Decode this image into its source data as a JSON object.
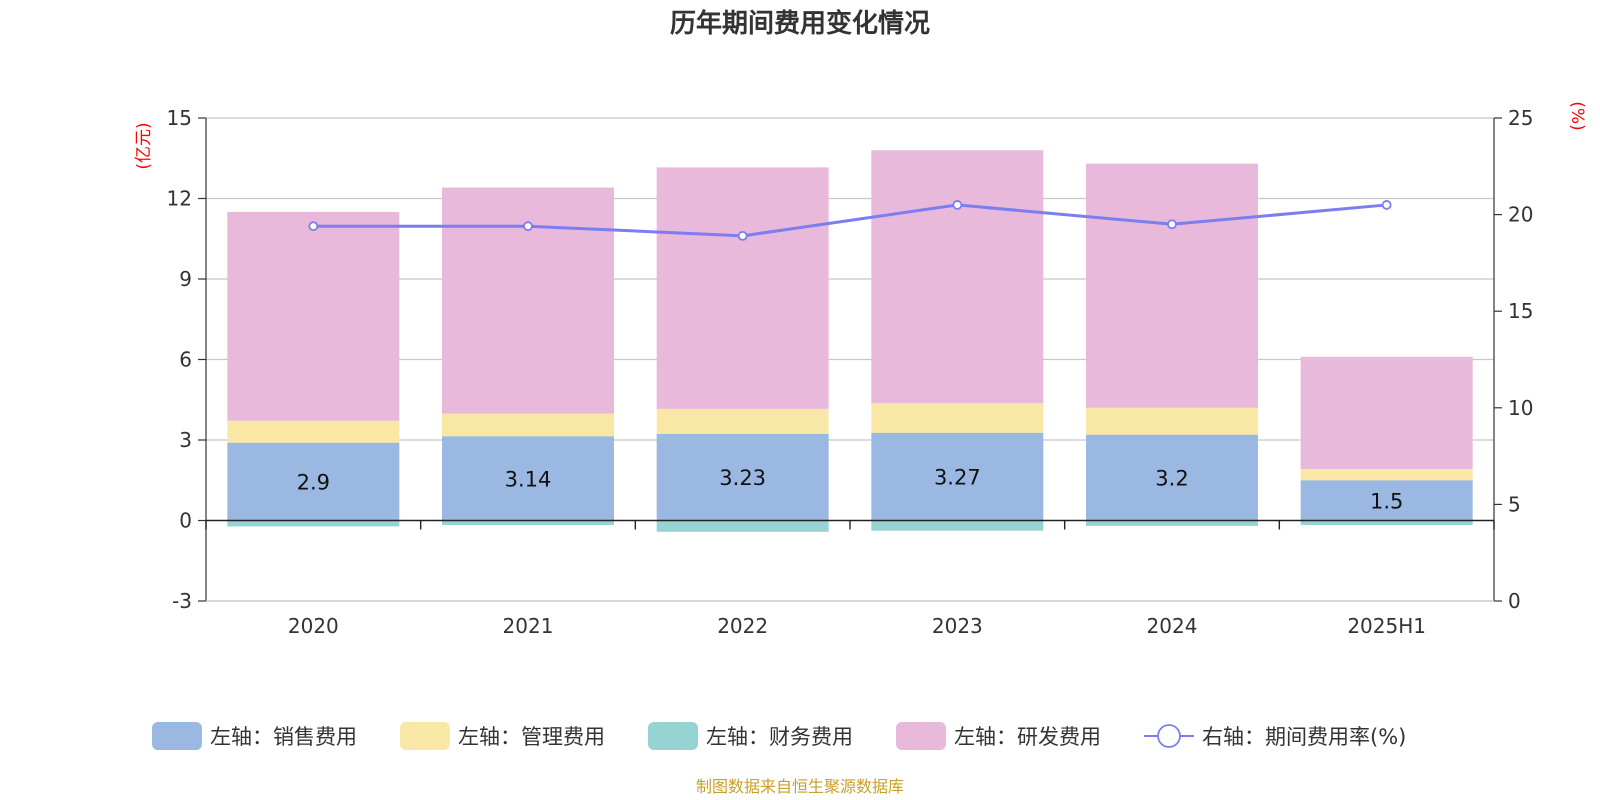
{
  "chart_data": {
    "type": "bar",
    "title": "历年期间费用变化情况",
    "categories": [
      "2020",
      "2021",
      "2022",
      "2023",
      "2024",
      "2025H1"
    ],
    "left_axis": {
      "unit": "(亿元)",
      "ylim": [
        -3,
        15
      ],
      "ticks": [
        -3,
        0,
        3,
        6,
        9,
        12,
        15
      ]
    },
    "right_axis": {
      "unit": "(%)",
      "ylim": [
        0,
        25
      ],
      "ticks": [
        0,
        5,
        10,
        15,
        20,
        25
      ]
    },
    "series": [
      {
        "name": "左轴：销售费用",
        "axis": "left",
        "kind": "bar",
        "color": "#9bb8e2",
        "values": [
          2.9,
          3.14,
          3.23,
          3.27,
          3.2,
          1.5
        ],
        "labels": [
          "2.9",
          "3.14",
          "3.23",
          "3.27",
          "3.2",
          "1.5"
        ]
      },
      {
        "name": "左轴：管理费用",
        "axis": "left",
        "kind": "bar",
        "color": "#f9e7a6",
        "values": [
          0.82,
          0.84,
          0.93,
          1.1,
          1.0,
          0.42
        ]
      },
      {
        "name": "左轴：财务费用",
        "axis": "left",
        "kind": "bar",
        "color": "#96d3d3",
        "values": [
          -0.22,
          -0.17,
          -0.42,
          -0.38,
          -0.2,
          -0.17
        ]
      },
      {
        "name": "左轴：研发费用",
        "axis": "left",
        "kind": "bar",
        "color": "#e8b9da",
        "values": [
          7.78,
          8.43,
          9.0,
          9.43,
          9.1,
          4.18
        ]
      },
      {
        "name": "右轴：期间费用率(%)",
        "axis": "right",
        "kind": "line",
        "color": "#7b7ef0",
        "values": [
          19.4,
          19.4,
          18.9,
          20.5,
          19.5,
          20.5
        ]
      }
    ],
    "grid": true,
    "legend_position": "bottom"
  },
  "source_note": "制图数据来自恒生聚源数据库"
}
